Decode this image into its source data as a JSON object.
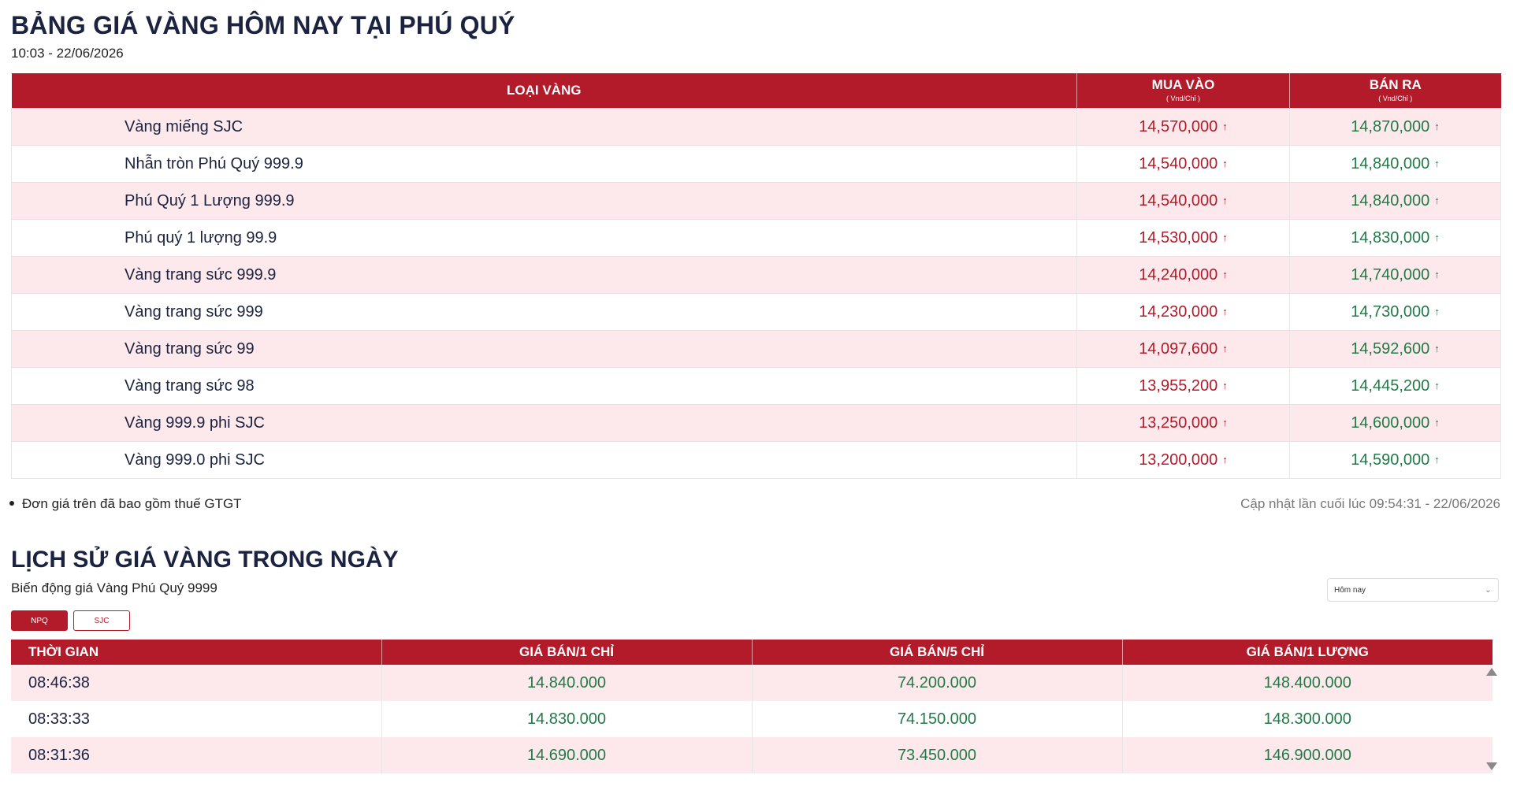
{
  "header": {
    "title": "BẢNG GIÁ VÀNG HÔM NAY TẠI PHÚ QUÝ",
    "datetime": "10:03 - 22/06/2026"
  },
  "price_table": {
    "columns": [
      {
        "label": "LOẠI VÀNG",
        "unit": ""
      },
      {
        "label": "MUA VÀO",
        "unit": "( Vnd/Chỉ )"
      },
      {
        "label": "BÁN RA",
        "unit": "( Vnd/Chỉ )"
      }
    ],
    "rows": [
      {
        "name": "Vàng miếng SJC",
        "buy": "14,570,000",
        "sell": "14,870,000"
      },
      {
        "name": "Nhẫn tròn Phú Quý 999.9",
        "buy": "14,540,000",
        "sell": "14,840,000"
      },
      {
        "name": "Phú Quý 1 Lượng 999.9",
        "buy": "14,540,000",
        "sell": "14,840,000"
      },
      {
        "name": "Phú quý 1 lượng 99.9",
        "buy": "14,530,000",
        "sell": "14,830,000"
      },
      {
        "name": "Vàng trang sức 999.9",
        "buy": "14,240,000",
        "sell": "14,740,000"
      },
      {
        "name": "Vàng trang sức 999",
        "buy": "14,230,000",
        "sell": "14,730,000"
      },
      {
        "name": "Vàng trang sức 99",
        "buy": "14,097,600",
        "sell": "14,592,600"
      },
      {
        "name": "Vàng trang sức 98",
        "buy": "13,955,200",
        "sell": "14,445,200"
      },
      {
        "name": "Vàng 999.9 phi SJC",
        "buy": "13,250,000",
        "sell": "14,600,000"
      },
      {
        "name": "Vàng 999.0 phi SJC",
        "buy": "13,200,000",
        "sell": "14,590,000"
      }
    ],
    "trend_icon": "arrow-up-icon",
    "trend_glyph": "↑"
  },
  "note": "Đơn giá trên đã bao gồm thuế GTGT",
  "last_updated": "Cập nhật lần cuối lúc 09:54:31 - 22/06/2026",
  "history": {
    "title": "LỊCH SỬ GIÁ VÀNG TRONG NGÀY",
    "subtitle": "Biến động giá Vàng Phú Quý 9999",
    "period_select": "Hôm nay",
    "tabs": [
      "NPQ",
      "SJC"
    ],
    "active_tab": "NPQ",
    "columns": [
      "THỜI GIAN",
      "GIÁ BÁN/1 CHỈ",
      "GIÁ BÁN/5 CHỈ",
      "GIÁ BÁN/1 LƯỢNG"
    ],
    "rows": [
      [
        "08:46:38",
        "14.840.000",
        "74.200.000",
        "148.400.000"
      ],
      [
        "08:33:33",
        "14.830.000",
        "74.150.000",
        "148.300.000"
      ],
      [
        "08:31:36",
        "14.690.000",
        "73.450.000",
        "146.900.000"
      ]
    ]
  },
  "colors": {
    "accent_red": "#b31b2a",
    "buy_red": "#b31b2a",
    "sell_green": "#217a47",
    "row_pink": "#fde8eb",
    "title_navy": "#1b2340"
  }
}
